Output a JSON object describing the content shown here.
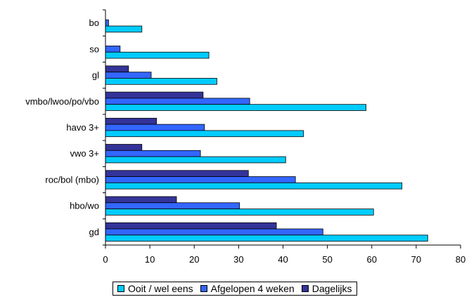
{
  "chart_data": {
    "type": "bar",
    "orientation": "horizontal",
    "categories": [
      "bo",
      "so",
      "gl",
      "vmbo/lwoo/po/vbo",
      "havo 3+",
      "vwo 3+",
      "roc/bol (mbo)",
      "hbo/wo",
      "gd"
    ],
    "series": [
      {
        "name": "Dagelijks",
        "color": "#333399",
        "values": [
          null,
          null,
          5.2,
          22.0,
          11.5,
          8.2,
          32.2,
          16.0,
          38.5
        ]
      },
      {
        "name": "Afgelopen 4 weken",
        "color": "#3366ff",
        "values": [
          0.7,
          3.3,
          10.3,
          32.5,
          22.3,
          21.4,
          42.8,
          30.2,
          49.0
        ]
      },
      {
        "name": "Ooit / wel eens",
        "color": "#00ccff",
        "values": [
          8.2,
          23.3,
          25.1,
          58.7,
          44.6,
          40.6,
          66.8,
          60.4,
          72.6
        ]
      }
    ],
    "legend_order": [
      "Ooit / wel eens",
      "Afgelopen 4 weken",
      "Dagelijks"
    ],
    "xticks": [
      "0",
      "10",
      "20",
      "30",
      "40",
      "50",
      "60",
      "70",
      "80"
    ],
    "xlim": [
      0,
      80
    ],
    "title": "",
    "xlabel": "",
    "ylabel": "",
    "grid": false,
    "legend_position": "bottom"
  }
}
